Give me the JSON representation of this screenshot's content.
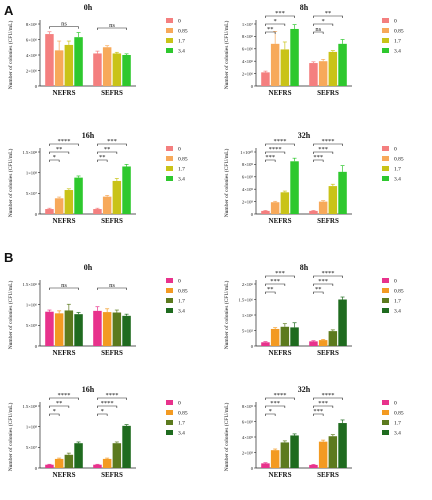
{
  "panel_labels": [
    "A",
    "B"
  ],
  "legend": {
    "entries": [
      "0",
      "0.85",
      "1.7",
      "3.4"
    ],
    "colors_A": [
      "#f47f7f",
      "#f7a95a",
      "#c9c318",
      "#2ec82e"
    ],
    "colors_B": [
      "#e8328c",
      "#f39a22",
      "#5c7a1e",
      "#1f6b1f"
    ]
  },
  "chart_data": [
    {
      "type": "bar",
      "panel": "A",
      "title": "0h",
      "ylabel": "Number of colonies (CFU/mL)",
      "categories": [
        "NEFRS",
        "SEFRS"
      ],
      "yticks": [
        "0",
        "2×10⁶",
        "4×10⁶",
        "6×10⁶",
        "8×10⁶"
      ],
      "ylim": [
        0,
        8000000
      ],
      "series": [
        {
          "name": "0",
          "values": [
            6700000,
            4200000
          ],
          "errors": [
            300000,
            300000
          ]
        },
        {
          "name": "0.85",
          "values": [
            4600000,
            5000000
          ],
          "errors": [
            1200000,
            200000
          ]
        },
        {
          "name": "1.7",
          "values": [
            5300000,
            4200000
          ],
          "errors": [
            500000,
            150000
          ]
        },
        {
          "name": "3.4",
          "values": [
            6300000,
            4000000
          ],
          "errors": [
            600000,
            150000
          ]
        }
      ],
      "significance": [
        {
          "group": 0,
          "from": 0,
          "to": 3,
          "label": "ns",
          "level": 0
        },
        {
          "group": 1,
          "from": 0,
          "to": 3,
          "label": "ns",
          "level": 0
        }
      ]
    },
    {
      "type": "bar",
      "panel": "A",
      "title": "8h",
      "ylabel": "Number of colonies (CFU/mL)",
      "categories": [
        "NEFRS",
        "SEFRS"
      ],
      "yticks": [
        "0",
        "2×10⁶",
        "4×10⁶",
        "6×10⁶",
        "8×10⁶",
        "1×10⁷"
      ],
      "ylim": [
        0,
        10000000
      ],
      "series": [
        {
          "name": "0",
          "values": [
            2200000,
            3700000
          ],
          "errors": [
            200000,
            200000
          ]
        },
        {
          "name": "0.85",
          "values": [
            6800000,
            4000000
          ],
          "errors": [
            2000000,
            300000
          ]
        },
        {
          "name": "1.7",
          "values": [
            5900000,
            5500000
          ],
          "errors": [
            1200000,
            200000
          ]
        },
        {
          "name": "3.4",
          "values": [
            9200000,
            6800000
          ],
          "errors": [
            700000,
            700000
          ]
        }
      ],
      "significance": [
        {
          "group": 0,
          "from": 0,
          "to": 1,
          "label": "**",
          "level": 0
        },
        {
          "group": 0,
          "from": 0,
          "to": 2,
          "label": "*",
          "level": 1
        },
        {
          "group": 0,
          "from": 0,
          "to": 3,
          "label": "***",
          "level": 2
        },
        {
          "group": 1,
          "from": 0,
          "to": 1,
          "label": "ns",
          "level": 0
        },
        {
          "group": 1,
          "from": 0,
          "to": 2,
          "label": "*",
          "level": 1
        },
        {
          "group": 1,
          "from": 0,
          "to": 3,
          "label": "**",
          "level": 2
        }
      ]
    },
    {
      "type": "bar",
      "panel": "A",
      "title": "16h",
      "ylabel": "Number of colonies (CFU/mL)",
      "categories": [
        "NEFRS",
        "SEFRS"
      ],
      "yticks": [
        "0",
        "5×10⁷",
        "1×10⁸",
        "1.5×10⁸"
      ],
      "ylim": [
        0,
        150000000
      ],
      "series": [
        {
          "name": "0",
          "values": [
            12000000,
            12000000
          ],
          "errors": [
            2000000,
            2000000
          ]
        },
        {
          "name": "0.85",
          "values": [
            38000000,
            42000000
          ],
          "errors": [
            3000000,
            3000000
          ]
        },
        {
          "name": "1.7",
          "values": [
            58000000,
            80000000
          ],
          "errors": [
            3000000,
            6000000
          ]
        },
        {
          "name": "3.4",
          "values": [
            88000000,
            115000000
          ],
          "errors": [
            4000000,
            5000000
          ]
        }
      ],
      "significance": [
        {
          "group": 0,
          "from": 0,
          "to": 1,
          "label": "*",
          "level": 0
        },
        {
          "group": 0,
          "from": 0,
          "to": 2,
          "label": "**",
          "level": 1
        },
        {
          "group": 0,
          "from": 0,
          "to": 3,
          "label": "****",
          "level": 2
        },
        {
          "group": 1,
          "from": 0,
          "to": 1,
          "label": "**",
          "level": 0
        },
        {
          "group": 1,
          "from": 0,
          "to": 2,
          "label": "**",
          "level": 1
        },
        {
          "group": 1,
          "from": 0,
          "to": 3,
          "label": "***",
          "level": 2
        }
      ]
    },
    {
      "type": "bar",
      "panel": "A",
      "title": "32h",
      "ylabel": "Number of colonies (CFU/mL)",
      "categories": [
        "NEFRS",
        "SEFRS"
      ],
      "yticks": [
        "0",
        "2×10⁹",
        "4×10⁹",
        "6×10⁹",
        "8×10⁹",
        "1×10¹⁰"
      ],
      "ylim": [
        0,
        10000000000
      ],
      "series": [
        {
          "name": "0",
          "values": [
            500000000,
            500000000
          ],
          "errors": [
            80000000,
            80000000
          ]
        },
        {
          "name": "0.85",
          "values": [
            1900000000,
            2000000000
          ],
          "errors": [
            150000000,
            150000000
          ]
        },
        {
          "name": "1.7",
          "values": [
            3500000000,
            4500000000
          ],
          "errors": [
            200000000,
            300000000
          ]
        },
        {
          "name": "3.4",
          "values": [
            8500000000,
            6800000000
          ],
          "errors": [
            500000000,
            1000000000
          ]
        }
      ],
      "significance": [
        {
          "group": 0,
          "from": 0,
          "to": 1,
          "label": "***",
          "level": 0
        },
        {
          "group": 0,
          "from": 0,
          "to": 2,
          "label": "****",
          "level": 1
        },
        {
          "group": 0,
          "from": 0,
          "to": 3,
          "label": "****",
          "level": 2
        },
        {
          "group": 1,
          "from": 0,
          "to": 1,
          "label": "***",
          "level": 0
        },
        {
          "group": 1,
          "from": 0,
          "to": 2,
          "label": "***",
          "level": 1
        },
        {
          "group": 1,
          "from": 0,
          "to": 3,
          "label": "****",
          "level": 2
        }
      ]
    },
    {
      "type": "bar",
      "panel": "B",
      "title": "0h",
      "ylabel": "Number of colonies (CFU/mL)",
      "categories": [
        "NEFRS",
        "SEFRS"
      ],
      "yticks": [
        "0",
        "5×10⁵",
        "1×10⁶",
        "1.5×10⁶"
      ],
      "ylim": [
        0,
        1500000
      ],
      "series": [
        {
          "name": "0",
          "values": [
            830000,
            850000
          ],
          "errors": [
            40000,
            100000
          ]
        },
        {
          "name": "0.85",
          "values": [
            790000,
            820000
          ],
          "errors": [
            60000,
            80000
          ]
        },
        {
          "name": "1.7",
          "values": [
            860000,
            810000
          ],
          "errors": [
            150000,
            60000
          ]
        },
        {
          "name": "3.4",
          "values": [
            770000,
            730000
          ],
          "errors": [
            40000,
            40000
          ]
        }
      ],
      "significance": [
        {
          "group": 0,
          "from": 0,
          "to": 3,
          "label": "ns",
          "level": 0
        },
        {
          "group": 1,
          "from": 0,
          "to": 3,
          "label": "ns",
          "level": 0
        }
      ]
    },
    {
      "type": "bar",
      "panel": "B",
      "title": "8h",
      "ylabel": "Number of colonies (CFU/mL)",
      "categories": [
        "NEFRS",
        "SEFRS"
      ],
      "yticks": [
        "0",
        "5×10⁵",
        "1×10⁶",
        "1.5×10⁶",
        "2×10⁶"
      ],
      "ylim": [
        0,
        2000000
      ],
      "series": [
        {
          "name": "0",
          "values": [
            120000,
            150000
          ],
          "errors": [
            20000,
            20000
          ]
        },
        {
          "name": "0.85",
          "values": [
            550000,
            190000
          ],
          "errors": [
            40000,
            20000
          ]
        },
        {
          "name": "1.7",
          "values": [
            620000,
            480000
          ],
          "errors": [
            100000,
            40000
          ]
        },
        {
          "name": "3.4",
          "values": [
            600000,
            1500000
          ],
          "errors": [
            150000,
            80000
          ]
        }
      ],
      "significance": [
        {
          "group": 0,
          "from": 0,
          "to": 1,
          "label": "**",
          "level": 0
        },
        {
          "group": 0,
          "from": 0,
          "to": 2,
          "label": "***",
          "level": 1
        },
        {
          "group": 0,
          "from": 0,
          "to": 3,
          "label": "***",
          "level": 2
        },
        {
          "group": 1,
          "from": 0,
          "to": 1,
          "label": "**",
          "level": 0
        },
        {
          "group": 1,
          "from": 0,
          "to": 2,
          "label": "***",
          "level": 1
        },
        {
          "group": 1,
          "from": 0,
          "to": 3,
          "label": "****",
          "level": 2
        }
      ]
    },
    {
      "type": "bar",
      "panel": "B",
      "title": "16h",
      "ylabel": "Number of colonies (CFU/mL)",
      "categories": [
        "NEFRS",
        "SEFRS"
      ],
      "yticks": [
        "0",
        "5×10⁷",
        "1×10⁸",
        "1.5×10⁸"
      ],
      "ylim": [
        0,
        150000000
      ],
      "series": [
        {
          "name": "0",
          "values": [
            8000000,
            8000000
          ],
          "errors": [
            1000000,
            1000000
          ]
        },
        {
          "name": "0.85",
          "values": [
            22000000,
            22000000
          ],
          "errors": [
            2000000,
            2000000
          ]
        },
        {
          "name": "1.7",
          "values": [
            32000000,
            60000000
          ],
          "errors": [
            4000000,
            3000000
          ]
        },
        {
          "name": "3.4",
          "values": [
            60000000,
            102000000
          ],
          "errors": [
            3000000,
            3000000
          ]
        }
      ],
      "significance": [
        {
          "group": 0,
          "from": 0,
          "to": 1,
          "label": "*",
          "level": 0
        },
        {
          "group": 0,
          "from": 0,
          "to": 2,
          "label": "**",
          "level": 1
        },
        {
          "group": 0,
          "from": 0,
          "to": 3,
          "label": "****",
          "level": 2
        },
        {
          "group": 1,
          "from": 0,
          "to": 1,
          "label": "*",
          "level": 0
        },
        {
          "group": 1,
          "from": 0,
          "to": 2,
          "label": "****",
          "level": 1
        },
        {
          "group": 1,
          "from": 0,
          "to": 3,
          "label": "****",
          "level": 2
        }
      ]
    },
    {
      "type": "bar",
      "panel": "B",
      "title": "32h",
      "ylabel": "Number of colonies (CFU/mL)",
      "categories": [
        "NEFRS",
        "SEFRS"
      ],
      "yticks": [
        "0",
        "2×10⁹",
        "4×10⁹",
        "6×10⁹",
        "8×10⁹"
      ],
      "ylim": [
        0,
        8000000000
      ],
      "series": [
        {
          "name": "0",
          "values": [
            600000000,
            400000000
          ],
          "errors": [
            80000000,
            60000000
          ]
        },
        {
          "name": "0.85",
          "values": [
            2300000000,
            3400000000
          ],
          "errors": [
            150000000,
            200000000
          ]
        },
        {
          "name": "1.7",
          "values": [
            3300000000,
            4100000000
          ],
          "errors": [
            200000000,
            200000000
          ]
        },
        {
          "name": "3.4",
          "values": [
            4200000000,
            5800000000
          ],
          "errors": [
            200000000,
            400000000
          ]
        }
      ],
      "significance": [
        {
          "group": 0,
          "from": 0,
          "to": 1,
          "label": "*",
          "level": 0
        },
        {
          "group": 0,
          "from": 0,
          "to": 2,
          "label": "***",
          "level": 1
        },
        {
          "group": 0,
          "from": 0,
          "to": 3,
          "label": "****",
          "level": 2
        },
        {
          "group": 1,
          "from": 0,
          "to": 1,
          "label": "***",
          "level": 0
        },
        {
          "group": 1,
          "from": 0,
          "to": 2,
          "label": "***",
          "level": 1
        },
        {
          "group": 1,
          "from": 0,
          "to": 3,
          "label": "****",
          "level": 2
        }
      ]
    }
  ]
}
